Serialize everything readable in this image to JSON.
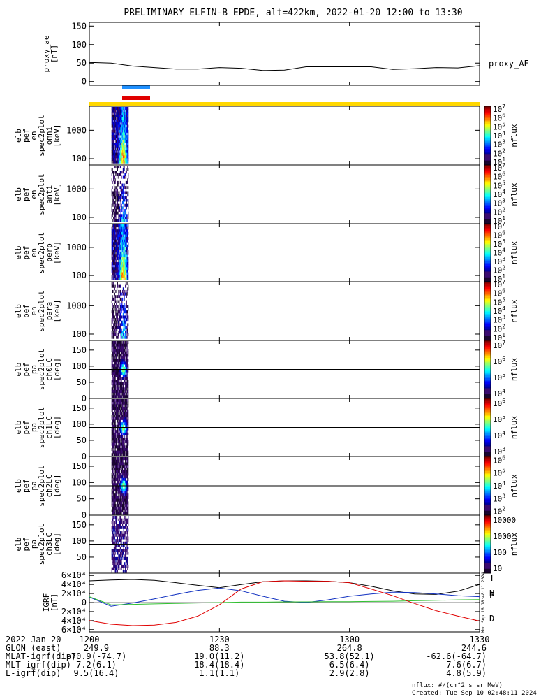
{
  "title": "PRELIMINARY ELFIN-B EPDE, alt=422km, 2022-01-20 12:00 to 13:30",
  "colors": {
    "gold_bar": "#FFD700",
    "orbit_blue": "#1E90FF",
    "orbit_red": "#E00000",
    "comp_T": "#000000",
    "comp_N": "#1030C0",
    "comp_E": "#30C030",
    "comp_D": "#E00000"
  },
  "chart_data": [
    {
      "id": "proxy_ae",
      "type": "line",
      "ylabel_lines": [
        "proxy_ae",
        "[nT]"
      ],
      "ylim": [
        -10,
        160
      ],
      "yticks": [
        0,
        50,
        100,
        150
      ],
      "legend": "proxy_AE",
      "x_minutes": [
        0,
        5,
        10,
        15,
        20,
        25,
        30,
        35,
        40,
        45,
        50,
        55,
        60,
        65,
        70,
        75,
        80,
        85,
        90
      ],
      "values": [
        52,
        50,
        42,
        38,
        34,
        34,
        38,
        36,
        30,
        31,
        40,
        40,
        40,
        40,
        33,
        35,
        38,
        37,
        43
      ]
    },
    {
      "id": "omni",
      "type": "heatmap",
      "ylabel_lines": [
        "elb",
        "pef",
        "en",
        "spec2plot",
        "omni",
        "[keV]"
      ],
      "ylog": true,
      "yticks": [
        100,
        1000
      ],
      "colorbar_ticks": [
        "10^1",
        "10^2",
        "10^3",
        "10^4",
        "10^5",
        "10^6",
        "10^7"
      ],
      "colorbar_label": "nflux"
    },
    {
      "id": "anti",
      "type": "heatmap",
      "ylabel_lines": [
        "elb",
        "pef",
        "en",
        "spec2plot",
        "anti",
        "[keV]"
      ],
      "ylog": true,
      "yticks": [
        100,
        1000
      ],
      "colorbar_ticks": [
        "10^1",
        "10^2",
        "10^3",
        "10^4",
        "10^5",
        "10^6",
        "10^7"
      ],
      "colorbar_label": "nflux"
    },
    {
      "id": "perp",
      "type": "heatmap",
      "ylabel_lines": [
        "elb",
        "pef",
        "en",
        "spec2plot",
        "perp",
        "[keV]"
      ],
      "ylog": true,
      "yticks": [
        100,
        1000
      ],
      "colorbar_ticks": [
        "10^1",
        "10^2",
        "10^3",
        "10^4",
        "10^5",
        "10^6",
        "10^7"
      ],
      "colorbar_label": "nflux"
    },
    {
      "id": "para",
      "type": "heatmap",
      "ylabel_lines": [
        "elb",
        "pef",
        "en",
        "spec2plot",
        "para",
        "[keV]"
      ],
      "ylog": true,
      "yticks": [
        100,
        1000
      ],
      "colorbar_ticks": [
        "10^1",
        "10^2",
        "10^3",
        "10^4",
        "10^5",
        "10^6",
        "10^7"
      ],
      "colorbar_label": "nflux"
    },
    {
      "id": "ch0LC",
      "type": "heatmap",
      "ylabel_lines": [
        "elb",
        "pef",
        "pa",
        "spec2plot",
        "ch0LC",
        "[deg]"
      ],
      "ylim": [
        0,
        180
      ],
      "yticks": [
        0,
        50,
        100,
        150
      ],
      "reference_line": 90,
      "colorbar_ticks": [
        "10^4",
        "10^5",
        "10^6",
        "10^7"
      ],
      "colorbar_label": "nflux"
    },
    {
      "id": "ch1LC",
      "type": "heatmap",
      "ylabel_lines": [
        "elb",
        "pef",
        "pa",
        "spec2plot",
        "ch1LC",
        "[deg]"
      ],
      "ylim": [
        0,
        180
      ],
      "yticks": [
        0,
        50,
        100,
        150
      ],
      "reference_line": 90,
      "colorbar_ticks": [
        "10^3",
        "10^4",
        "10^5",
        "10^6"
      ],
      "colorbar_label": "nflux"
    },
    {
      "id": "ch2LC",
      "type": "heatmap",
      "ylabel_lines": [
        "elb",
        "pef",
        "pa",
        "spec2plot",
        "ch2LC",
        "[deg]"
      ],
      "ylim": [
        0,
        180
      ],
      "yticks": [
        0,
        50,
        100,
        150
      ],
      "reference_line": 90,
      "colorbar_ticks": [
        "10^2",
        "10^3",
        "10^4",
        "10^5",
        "10^6"
      ],
      "colorbar_label": "nflux"
    },
    {
      "id": "ch3LC",
      "type": "heatmap",
      "ylabel_lines": [
        "elb",
        "pef",
        "pa",
        "spec2plot",
        "ch3LC",
        "[deg]"
      ],
      "ylim": [
        0,
        180
      ],
      "yticks": [
        50,
        100,
        150
      ],
      "reference_line": 90,
      "colorbar_ticks": [
        "10",
        "100",
        "1000",
        "10000"
      ],
      "colorbar_label": "nflux"
    },
    {
      "id": "igrf",
      "type": "line",
      "ylabel_lines": [
        "IGRF",
        "[nT]"
      ],
      "ylim": [
        -65000,
        65000
      ],
      "yticks": [
        -60000,
        -40000,
        -20000,
        0,
        20000,
        40000,
        60000
      ],
      "ytick_labels": [
        "-6×10⁴",
        "-4×10⁴",
        "-2×10⁴",
        "0",
        "2×10⁴",
        "4×10⁴",
        "6×10⁴"
      ],
      "x_minutes": [
        0,
        5,
        10,
        15,
        20,
        25,
        30,
        35,
        40,
        45,
        50,
        55,
        60,
        65,
        70,
        75,
        80,
        85,
        90
      ],
      "series": [
        {
          "name": "T",
          "values": [
            48000,
            50000,
            51000,
            49000,
            44000,
            38000,
            33000,
            40000,
            46000,
            48000,
            48000,
            47000,
            44000,
            36000,
            26000,
            19000,
            18000,
            25000,
            40000
          ]
        },
        {
          "name": "N",
          "values": [
            12000,
            -8000,
            -1000,
            8000,
            18000,
            27000,
            32000,
            26000,
            14000,
            3000,
            0,
            6000,
            14000,
            19000,
            23000,
            22000,
            19000,
            15000,
            13000
          ]
        },
        {
          "name": "E",
          "values": [
            13000,
            -5000,
            -4000,
            -3000,
            -2000,
            -1000,
            0,
            1000,
            1000,
            1500,
            1500,
            2000,
            2000,
            2500,
            3000,
            4000,
            5000,
            6000,
            6500
          ]
        },
        {
          "name": "D",
          "values": [
            -40000,
            -48000,
            -51000,
            -50000,
            -44000,
            -30000,
            -5000,
            30000,
            46000,
            48000,
            47000,
            47000,
            44000,
            30000,
            15000,
            -2000,
            -18000,
            -30000,
            -41000
          ]
        }
      ]
    }
  ],
  "xaxis": {
    "date_label": "2022 Jan 20",
    "ticks": [
      "1200",
      "1230",
      "1300",
      "1330"
    ]
  },
  "orbit_table": [
    {
      "label": "GLON (east)",
      "values": [
        "249.9",
        "88.3",
        "264.8",
        "244.6"
      ]
    },
    {
      "label": "MLAT-igrf(dip)",
      "values": [
        "-70.9(-74.7)",
        "19.0(11.2)",
        "53.8(52.1)",
        "-62.6(-64.7)"
      ]
    },
    {
      "label": "MLT-igrf(dip)",
      "values": [
        "7.2(6.1)",
        "18.4(18.4)",
        "6.5(6.4)",
        "7.6(6.7)"
      ]
    },
    {
      "label": "L-igrf(dip)",
      "values": [
        "9.5(16.4)",
        "1.1(1.1)",
        "2.9(2.8)",
        "4.8(5.9)"
      ]
    }
  ],
  "footer": {
    "units": "nflux: #/(cm^2 s sr MeV)",
    "created": "Created: Tue Sep 10 02:48:11 2024",
    "side_stamp": "Mon Sep 16 18:48:11 2024"
  }
}
